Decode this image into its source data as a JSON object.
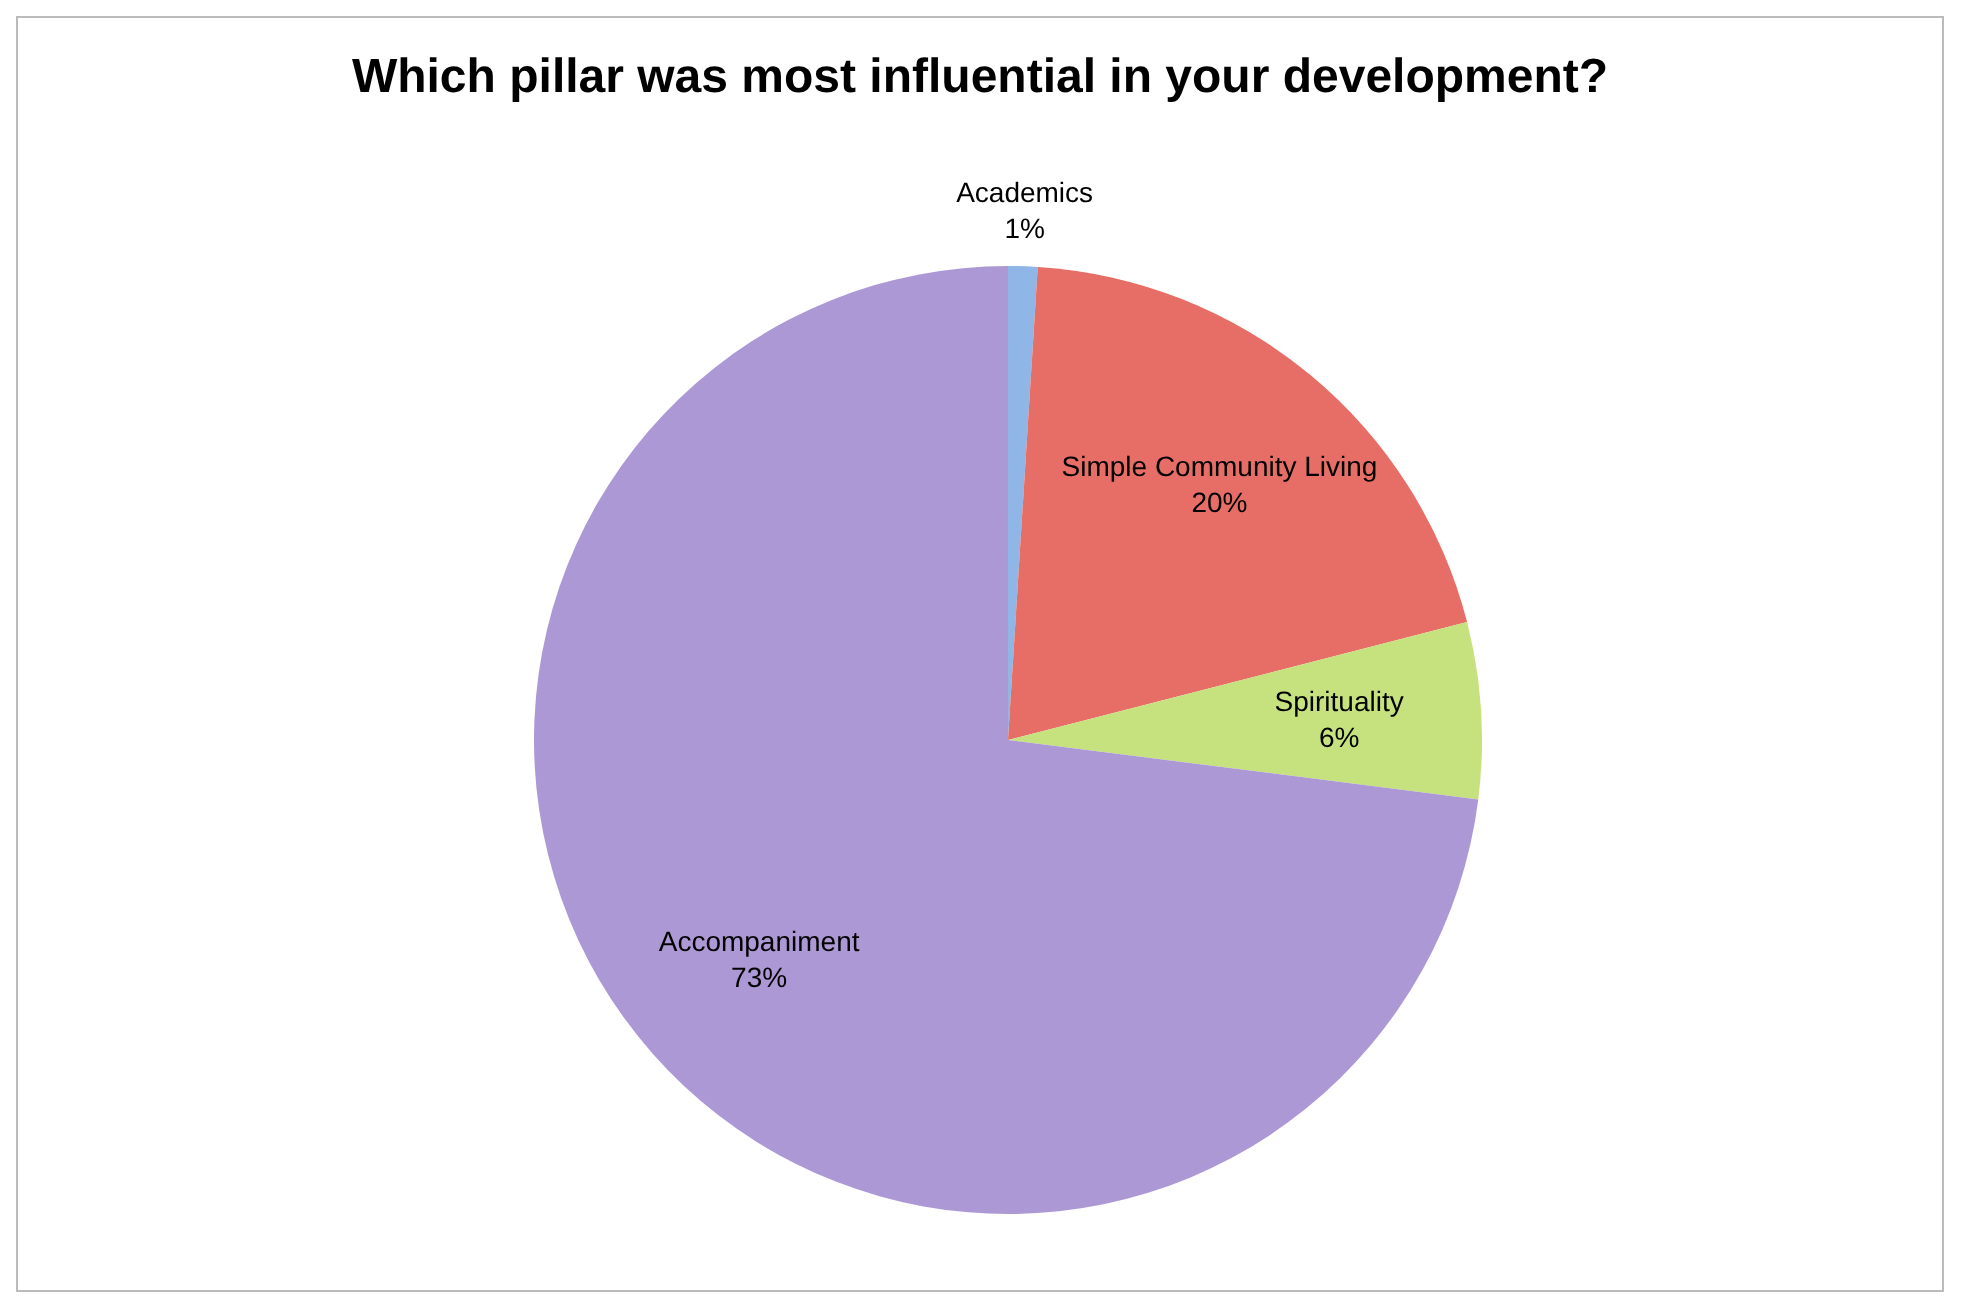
{
  "chart_data": {
    "type": "pie",
    "title": "Which pillar was most influential in your development?",
    "categories": [
      "Academics",
      "Simple Community Living",
      "Spirituality",
      "Accompaniment"
    ],
    "values": [
      1,
      20,
      6,
      73
    ],
    "value_labels": [
      "1%",
      "20%",
      "6%",
      "73%"
    ],
    "colors": [
      "#8fb6e6",
      "#e66e66",
      "#c6e27e",
      "#ad98d6"
    ]
  }
}
